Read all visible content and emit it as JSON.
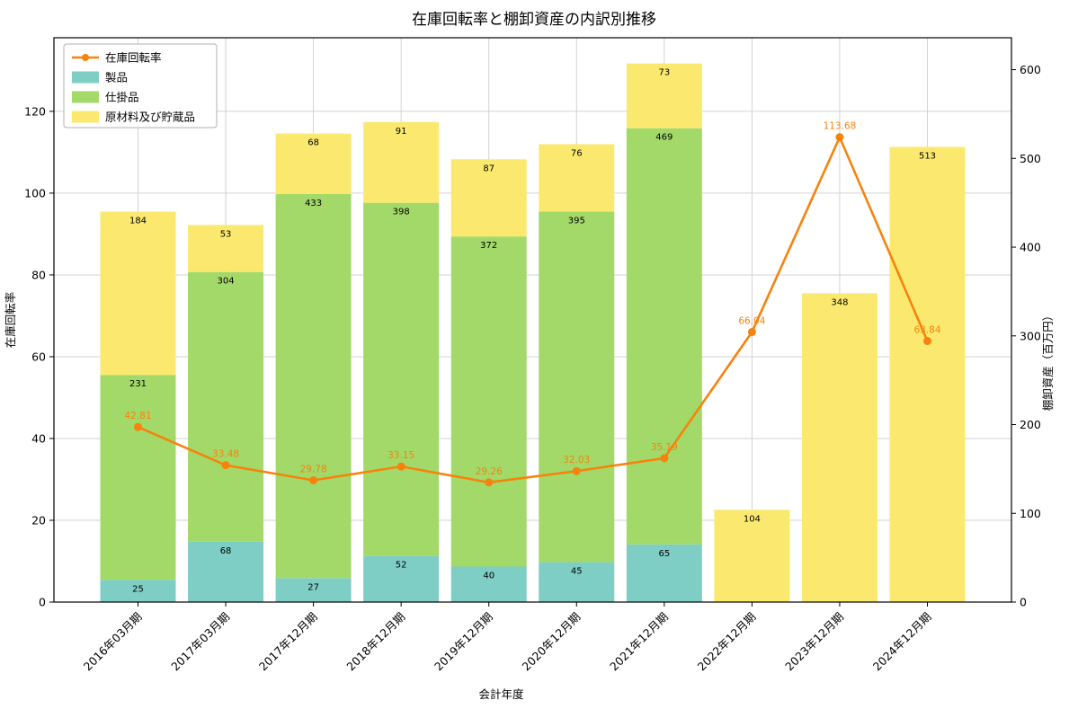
{
  "chart_data": {
    "type": "bar",
    "subtype": "stacked-bar-with-line-dual-axis",
    "title": "在庫回転率と棚卸資産の内訳別推移",
    "xlabel": "会計年度",
    "ylabel_left": "在庫回転率",
    "ylabel_right": "棚卸資産（百万円）",
    "categories": [
      "2016年03月期",
      "2017年03月期",
      "2017年12月期",
      "2018年12月期",
      "2019年12月期",
      "2020年12月期",
      "2021年12月期",
      "2022年12月期",
      "2023年12月期",
      "2024年12月期"
    ],
    "bar_series": [
      {
        "name": "製品",
        "color": "#7ecec5",
        "values": [
          25,
          68,
          27,
          52,
          40,
          45,
          65,
          0,
          0,
          0
        ]
      },
      {
        "name": "仕掛品",
        "color": "#a3d968",
        "values": [
          231,
          304,
          433,
          398,
          372,
          395,
          469,
          0,
          0,
          0
        ]
      },
      {
        "name": "原材料及び貯蔵品",
        "color": "#fbe96f",
        "values": [
          184,
          53,
          68,
          91,
          87,
          76,
          73,
          104,
          348,
          513
        ]
      }
    ],
    "bar_totals": [
      440,
      425,
      528,
      541,
      499,
      516,
      607,
      104,
      348,
      513
    ],
    "line_series": {
      "name": "在庫回転率",
      "color": "#f7830d",
      "values": [
        42.81,
        33.48,
        29.78,
        33.15,
        29.26,
        32.03,
        35.19,
        66.04,
        113.68,
        63.84
      ]
    },
    "left_axis": {
      "label": "在庫回転率",
      "ticks": [
        0,
        20,
        40,
        60,
        80,
        100,
        120
      ],
      "max": 138
    },
    "right_axis": {
      "label": "棚卸資産（百万円）",
      "ticks": [
        0,
        100,
        200,
        300,
        400,
        500,
        600
      ],
      "max": 636
    },
    "legend": {
      "position": "upper left",
      "entries": [
        "在庫回転率",
        "製品",
        "仕掛品",
        "原材料及び貯蔵品"
      ]
    },
    "grid": true,
    "colors": {
      "grid": "#d3d3d3",
      "frame": "#000000",
      "bar_label": "#000000",
      "line_label": "#f7830d",
      "legend_border": "#b0b0b0",
      "background": "#ffffff"
    }
  }
}
